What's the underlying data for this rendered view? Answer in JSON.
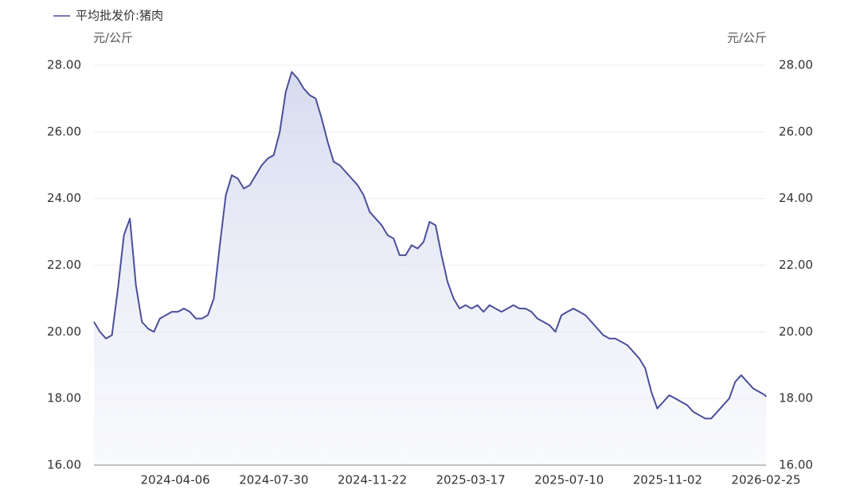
{
  "chart_data": {
    "type": "line",
    "y_label": "元/公斤",
    "y2_label": "元/公斤",
    "x": [
      "2024-01-02",
      "2024-01-09",
      "2024-01-16",
      "2024-01-23",
      "2024-01-30",
      "2024-02-06",
      "2024-02-13",
      "2024-02-20",
      "2024-02-27",
      "2024-03-05",
      "2024-03-12",
      "2024-03-19",
      "2024-03-26",
      "2024-04-02",
      "2024-04-09",
      "2024-04-16",
      "2024-04-23",
      "2024-04-30",
      "2024-05-07",
      "2024-05-14",
      "2024-05-21",
      "2024-05-28",
      "2024-06-04",
      "2024-06-11",
      "2024-06-18",
      "2024-06-25",
      "2024-07-02",
      "2024-07-09",
      "2024-07-16",
      "2024-07-23",
      "2024-07-30",
      "2024-08-06",
      "2024-08-13",
      "2024-08-20",
      "2024-08-27",
      "2024-09-03",
      "2024-09-10",
      "2024-09-17",
      "2024-09-24",
      "2024-10-01",
      "2024-10-08",
      "2024-10-15",
      "2024-10-22",
      "2024-10-29",
      "2024-11-05",
      "2024-11-12",
      "2024-11-19",
      "2024-11-26",
      "2024-12-03",
      "2024-12-10",
      "2024-12-17",
      "2024-12-24",
      "2024-12-31",
      "2025-01-07",
      "2025-01-14",
      "2025-01-21",
      "2025-01-28",
      "2025-02-04",
      "2025-02-11",
      "2025-02-18",
      "2025-02-25",
      "2025-03-04",
      "2025-03-11",
      "2025-03-18",
      "2025-03-25",
      "2025-04-01",
      "2025-04-08",
      "2025-04-15",
      "2025-04-22",
      "2025-04-29",
      "2025-05-06",
      "2025-05-13",
      "2025-05-20",
      "2025-05-27",
      "2025-06-03",
      "2025-06-10",
      "2025-06-17",
      "2025-06-24",
      "2025-07-01",
      "2025-07-08",
      "2025-07-15",
      "2025-07-22",
      "2025-07-29",
      "2025-08-05",
      "2025-08-12",
      "2025-08-19",
      "2025-08-26",
      "2025-09-02",
      "2025-09-09",
      "2025-09-16",
      "2025-09-23",
      "2025-09-30",
      "2025-10-07",
      "2025-10-14",
      "2025-10-21",
      "2025-10-28",
      "2025-11-04",
      "2025-11-11",
      "2025-11-18",
      "2025-11-25",
      "2025-12-02",
      "2025-12-09",
      "2025-12-16",
      "2025-12-23",
      "2025-12-30",
      "2026-01-06",
      "2026-01-13",
      "2026-01-20",
      "2026-01-27",
      "2026-02-03",
      "2026-02-10",
      "2026-02-17",
      "2026-02-24",
      "2026-02-25"
    ],
    "series": [
      {
        "name": "平均批发价:猪肉",
        "color": "#4b4f9a",
        "values": [
          20.3,
          20.0,
          19.8,
          19.9,
          21.3,
          22.9,
          23.4,
          21.4,
          20.3,
          20.1,
          20.0,
          20.4,
          20.5,
          20.6,
          20.6,
          20.7,
          20.6,
          20.4,
          20.4,
          20.5,
          21.0,
          22.6,
          24.1,
          24.7,
          24.6,
          24.3,
          24.4,
          24.7,
          25.0,
          25.2,
          25.3,
          26.0,
          27.2,
          27.8,
          27.6,
          27.3,
          27.1,
          27.0,
          26.4,
          25.7,
          25.1,
          25.0,
          24.8,
          24.6,
          24.4,
          24.1,
          23.6,
          23.4,
          23.2,
          22.9,
          22.8,
          22.3,
          22.3,
          22.6,
          22.5,
          22.7,
          23.3,
          23.2,
          22.3,
          21.5,
          21.0,
          20.7,
          20.8,
          20.7,
          20.8,
          20.6,
          20.8,
          20.7,
          20.6,
          20.7,
          20.8,
          20.7,
          20.7,
          20.6,
          20.4,
          20.3,
          20.2,
          20.0,
          20.5,
          20.6,
          20.7,
          20.6,
          20.5,
          20.3,
          20.1,
          19.9,
          19.8,
          19.8,
          19.7,
          19.6,
          19.4,
          19.2,
          18.9,
          18.2,
          17.7,
          17.9,
          18.1,
          18.0,
          17.9,
          17.8,
          17.6,
          17.5,
          17.4,
          17.4,
          17.6,
          17.8,
          18.0,
          18.5,
          18.7,
          18.5,
          18.3,
          18.2,
          18.1,
          18.05
        ]
      }
    ],
    "xlim": [
      "2024-01-02",
      "2026-02-25"
    ],
    "xticks": [
      "2024-04-06",
      "2024-07-30",
      "2024-11-22",
      "2025-03-17",
      "2025-07-10",
      "2025-11-02",
      "2026-02-25"
    ],
    "ylim": [
      16,
      28
    ],
    "yticks": [
      {
        "value": 16,
        "label": "16.00"
      },
      {
        "value": 18,
        "label": "18.00"
      },
      {
        "value": 20,
        "label": "20.00"
      },
      {
        "value": 22,
        "label": "22.00"
      },
      {
        "value": 24,
        "label": "24.00"
      },
      {
        "value": 26,
        "label": "26.00"
      },
      {
        "value": 28,
        "label": "28.00"
      }
    ],
    "y2lim": [
      16,
      28
    ],
    "y2ticks": [
      {
        "value": 16,
        "label": "16.00"
      },
      {
        "value": 18,
        "label": "18.00"
      },
      {
        "value": 20,
        "label": "20.00"
      },
      {
        "value": 22,
        "label": "22.00"
      },
      {
        "value": 24,
        "label": "24.00"
      },
      {
        "value": 26,
        "label": "26.00"
      },
      {
        "value": 28,
        "label": "28.00"
      }
    ],
    "grid": true
  }
}
